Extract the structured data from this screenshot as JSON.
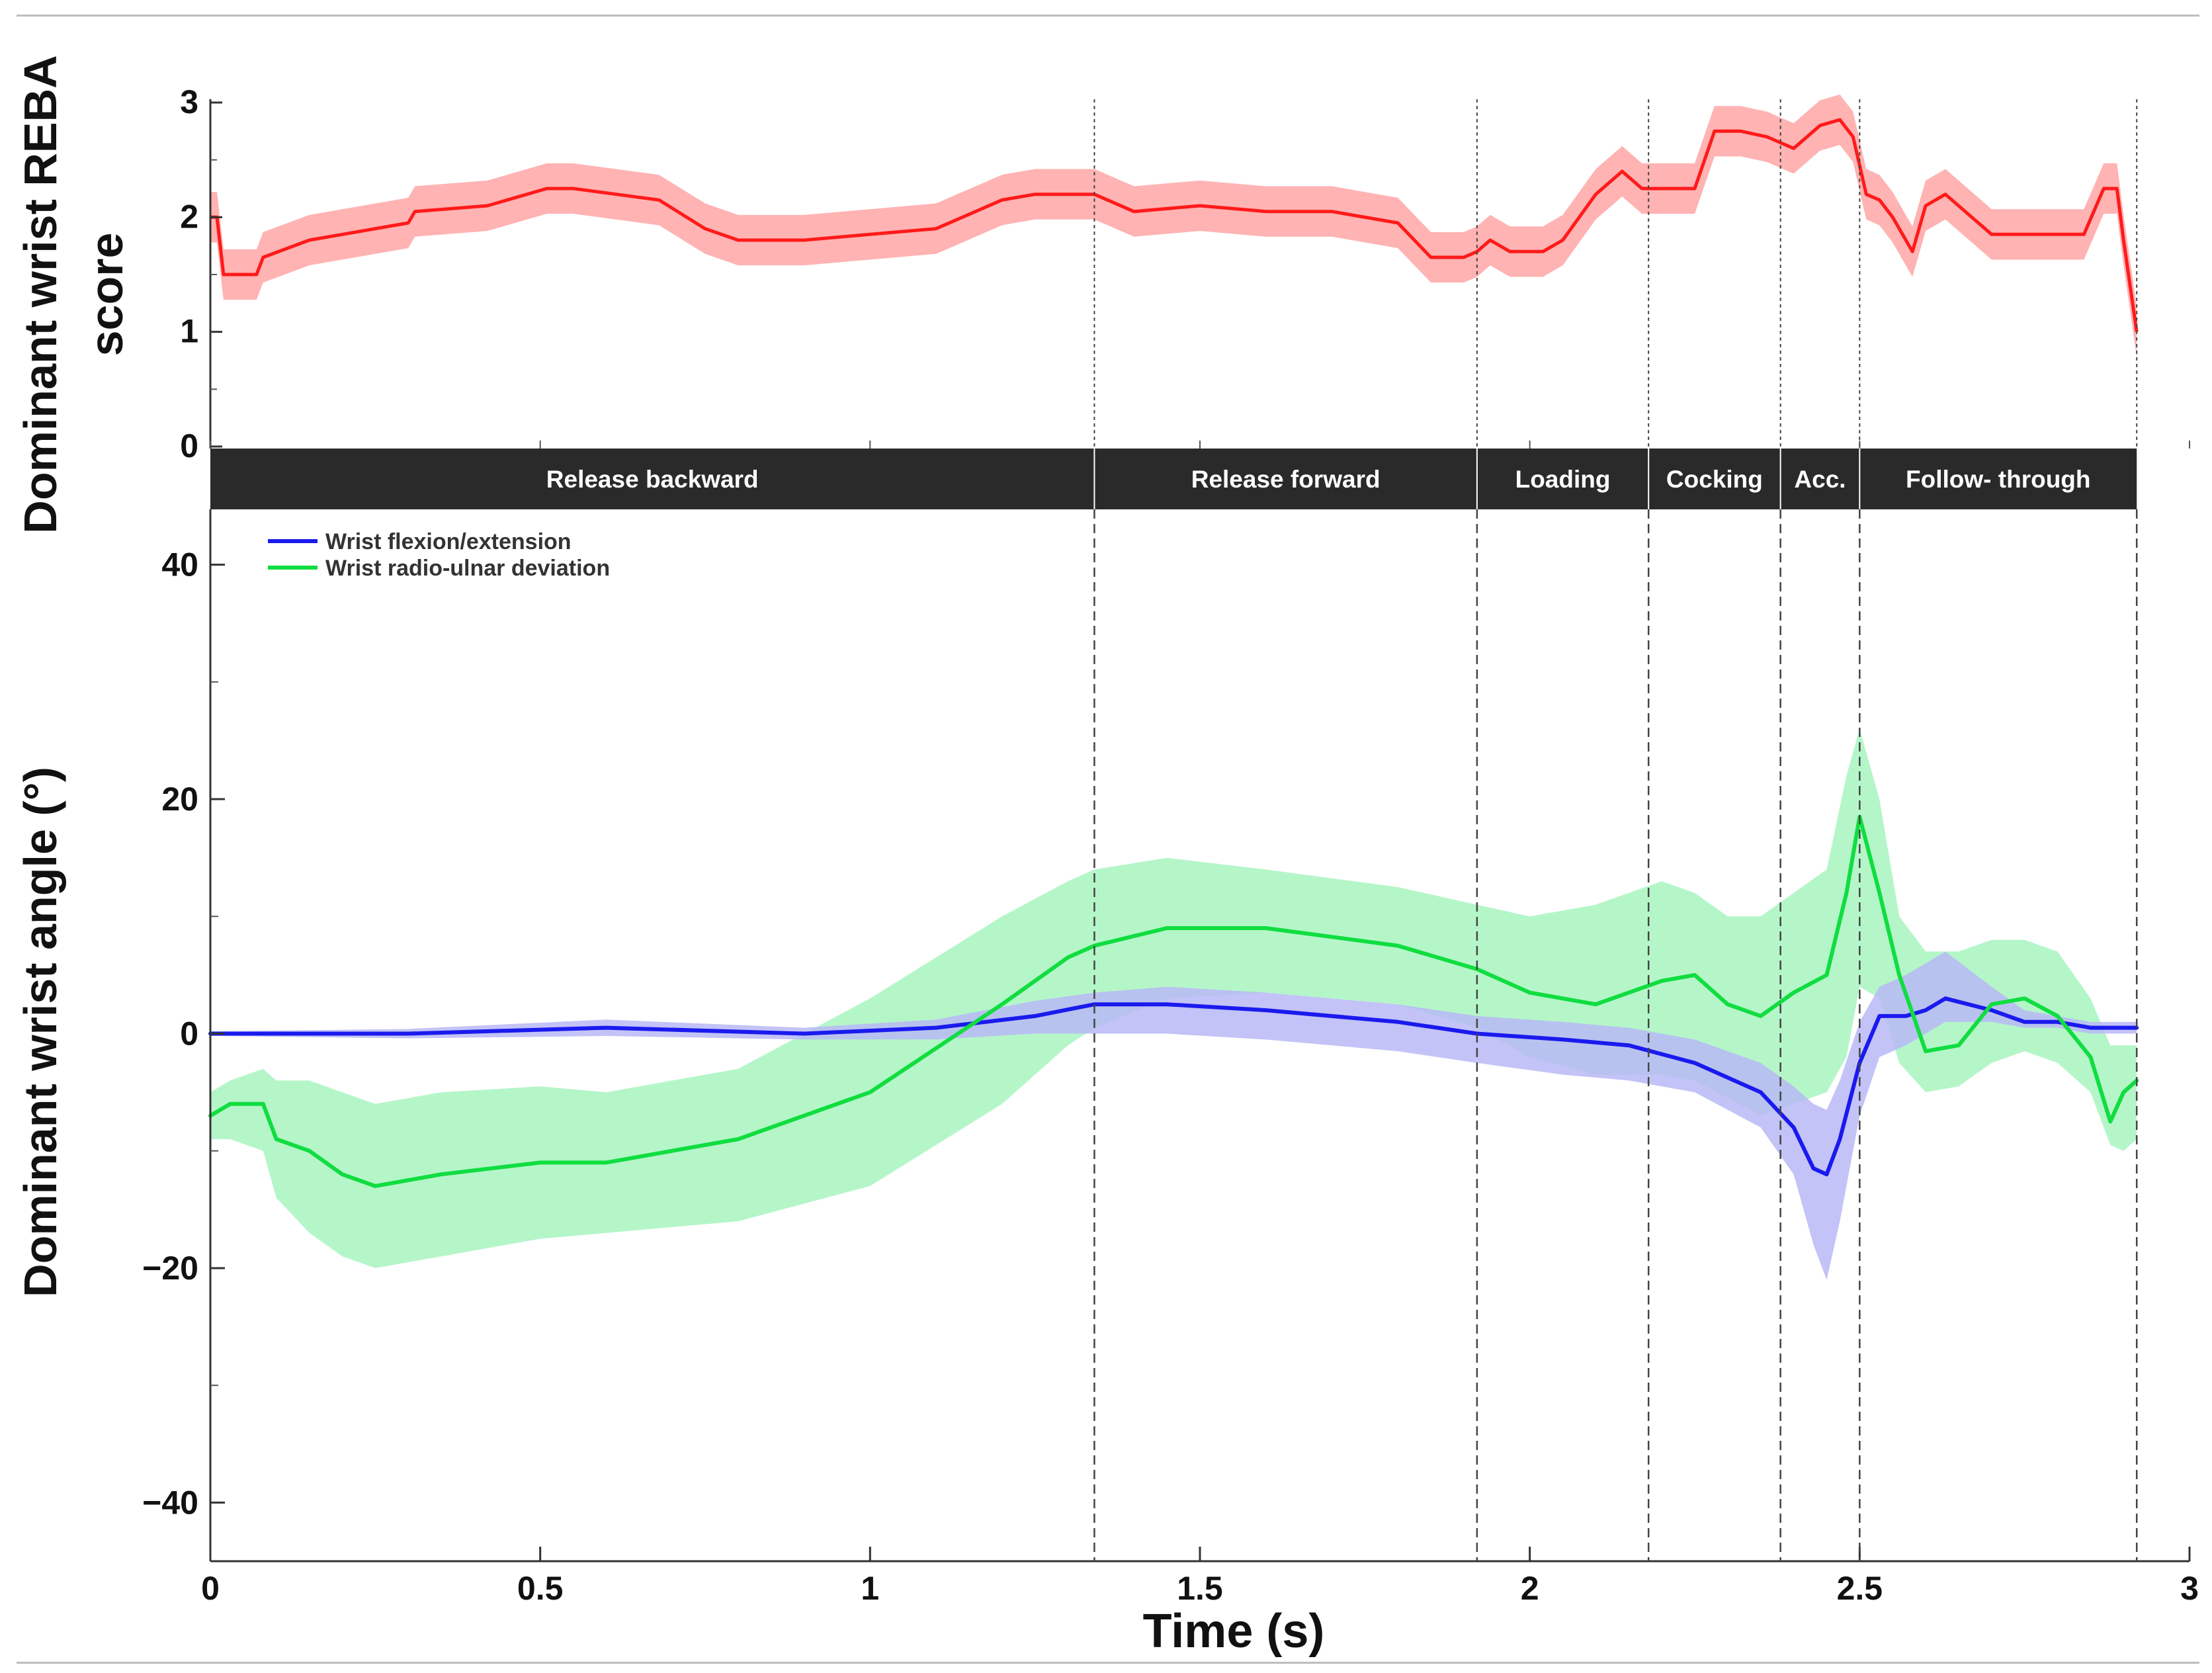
{
  "chart_data": [
    {
      "type": "line",
      "panel": "top",
      "ylabel": "Dominant wrist REBA score",
      "ylabel_lines": [
        "Dominant wrist REBA",
        "score"
      ],
      "xlim": [
        0,
        3
      ],
      "ylim": [
        0,
        3
      ],
      "yticks": [
        0,
        1,
        2,
        3
      ],
      "ytick_labels": [
        "0",
        "1",
        "2",
        "3"
      ],
      "colors": {
        "line": "#ff1a1a",
        "band": "#ffb3b3"
      },
      "series": [
        {
          "name": "REBA score",
          "x": [
            0,
            0.01,
            0.02,
            0.05,
            0.07,
            0.08,
            0.15,
            0.3,
            0.31,
            0.42,
            0.51,
            0.55,
            0.68,
            0.75,
            0.8,
            0.9,
            1.0,
            1.1,
            1.2,
            1.25,
            1.3,
            1.34,
            1.4,
            1.5,
            1.6,
            1.7,
            1.8,
            1.85,
            1.9,
            1.92,
            1.94,
            1.97,
            2.02,
            2.05,
            2.1,
            2.14,
            2.17,
            2.2,
            2.25,
            2.28,
            2.32,
            2.36,
            2.4,
            2.44,
            2.47,
            2.49,
            2.51,
            2.53,
            2.55,
            2.58,
            2.6,
            2.63,
            2.66,
            2.7,
            2.73,
            2.76,
            2.8,
            2.84,
            2.87,
            2.89,
            2.9,
            2.92
          ],
          "values": [
            2.0,
            2.0,
            1.5,
            1.5,
            1.5,
            1.65,
            1.8,
            1.95,
            2.05,
            2.1,
            2.25,
            2.25,
            2.15,
            1.9,
            1.8,
            1.8,
            1.85,
            1.9,
            2.15,
            2.2,
            2.2,
            2.2,
            2.05,
            2.1,
            2.05,
            2.05,
            1.95,
            1.65,
            1.65,
            1.7,
            1.8,
            1.7,
            1.7,
            1.8,
            2.2,
            2.4,
            2.25,
            2.25,
            2.25,
            2.75,
            2.75,
            2.7,
            2.6,
            2.8,
            2.85,
            2.7,
            2.2,
            2.15,
            2.0,
            1.7,
            2.1,
            2.2,
            2.05,
            1.85,
            1.85,
            1.85,
            1.85,
            1.85,
            2.25,
            2.25,
            1.8,
            1.0
          ],
          "band_halfwidth": 0.22
        }
      ]
    },
    {
      "type": "line",
      "panel": "bottom",
      "title": "",
      "xlabel": "Time (s)",
      "ylabel": "Dominant wrist angle (°)",
      "xlim": [
        0,
        3
      ],
      "ylim": [
        -45,
        45
      ],
      "xticks": [
        0,
        0.5,
        1,
        1.5,
        2,
        2.5,
        3
      ],
      "xtick_labels": [
        "0",
        "0.5",
        "1",
        "1.5",
        "2",
        "2.5",
        "3"
      ],
      "yticks": [
        -40,
        -20,
        0,
        20,
        40
      ],
      "ytick_labels": [
        "−40",
        "−20",
        "0",
        "20",
        "40"
      ],
      "legend_position": "top-left",
      "series": [
        {
          "name": "Wrist flexion/extension",
          "color": "#1a1aee",
          "band_color": "#b8b8f6",
          "x": [
            0,
            0.3,
            0.6,
            0.9,
            1.1,
            1.25,
            1.34,
            1.45,
            1.6,
            1.8,
            1.92,
            2.05,
            2.15,
            2.25,
            2.35,
            2.4,
            2.43,
            2.45,
            2.47,
            2.5,
            2.53,
            2.57,
            2.6,
            2.63,
            2.7,
            2.75,
            2.8,
            2.85,
            2.9,
            2.92
          ],
          "values": [
            0,
            0,
            0.5,
            0,
            0.5,
            1.5,
            2.5,
            2.5,
            2.0,
            1.0,
            0,
            -0.5,
            -1.0,
            -2.5,
            -5.0,
            -8.0,
            -11.5,
            -12.0,
            -9.0,
            -2.5,
            1.5,
            1.5,
            2.0,
            3.0,
            2.0,
            1.0,
            1.0,
            0.5,
            0.5,
            0.5
          ],
          "band_low": [
            -0.2,
            -0.4,
            -0.2,
            -0.5,
            -0.5,
            0,
            0,
            0,
            -0.5,
            -1.5,
            -2.5,
            -3.5,
            -4.0,
            -5.0,
            -8.0,
            -12.0,
            -18.0,
            -21.0,
            -16.0,
            -7.0,
            -2.0,
            -1.0,
            0,
            1.0,
            1.0,
            0.5,
            0.5,
            0,
            0,
            0
          ],
          "band_high": [
            0.2,
            0.4,
            1.2,
            0.5,
            1.2,
            2.8,
            3.5,
            4.0,
            3.5,
            2.5,
            1.5,
            1.0,
            0.5,
            -0.5,
            -2.5,
            -4.5,
            -6.0,
            -6.5,
            -4.0,
            1.0,
            4.0,
            5.0,
            6.0,
            7.0,
            4.0,
            2.0,
            1.5,
            1.0,
            1.0,
            1.0
          ]
        },
        {
          "name": "Wrist radio-ulnar deviation",
          "color": "#10dd40",
          "band_color": "#a8f5c0",
          "x": [
            0,
            0.03,
            0.08,
            0.1,
            0.15,
            0.2,
            0.25,
            0.35,
            0.5,
            0.6,
            0.8,
            1.0,
            1.2,
            1.3,
            1.34,
            1.45,
            1.6,
            1.8,
            1.92,
            2.0,
            2.1,
            2.2,
            2.25,
            2.3,
            2.35,
            2.4,
            2.45,
            2.48,
            2.5,
            2.53,
            2.56,
            2.6,
            2.65,
            2.7,
            2.75,
            2.8,
            2.85,
            2.88,
            2.9,
            2.92
          ],
          "values": [
            -7.0,
            -6.0,
            -6.0,
            -9.0,
            -10.0,
            -12.0,
            -13.0,
            -12.0,
            -11.0,
            -11.0,
            -9.0,
            -5.0,
            2.5,
            6.5,
            7.5,
            9.0,
            9.0,
            7.5,
            5.5,
            3.5,
            2.5,
            4.5,
            5.0,
            2.5,
            1.5,
            3.5,
            5.0,
            12.0,
            18.5,
            12.0,
            5.0,
            -1.5,
            -1.0,
            2.5,
            3.0,
            1.5,
            -2.0,
            -7.5,
            -5.0,
            -4.0
          ],
          "band_low": [
            -9.0,
            -9.0,
            -10.0,
            -14.0,
            -17.0,
            -19.0,
            -20.0,
            -19.0,
            -17.5,
            -17.0,
            -16.0,
            -13.0,
            -6.0,
            -1.0,
            0.5,
            3.0,
            3.5,
            2.5,
            0.5,
            -2.0,
            -3.5,
            -3.5,
            -4.0,
            -5.5,
            -7.0,
            -6.0,
            -5.0,
            -2.0,
            4.0,
            3.0,
            -2.5,
            -5.0,
            -4.5,
            -2.5,
            -1.5,
            -2.5,
            -5.0,
            -9.5,
            -10.0,
            -9.0
          ],
          "band_high": [
            -5.0,
            -4.0,
            -3.0,
            -4.0,
            -4.0,
            -5.0,
            -6.0,
            -5.0,
            -4.5,
            -5.0,
            -3.0,
            3.0,
            10.0,
            13.0,
            14.0,
            15.0,
            14.0,
            12.5,
            11.0,
            10.0,
            11.0,
            13.0,
            12.0,
            10.0,
            10.0,
            12.0,
            14.0,
            22.0,
            26.0,
            20.0,
            10.0,
            7.0,
            7.0,
            8.0,
            8.0,
            7.0,
            3.0,
            -1.0,
            -1.0,
            -1.0
          ]
        }
      ]
    }
  ],
  "phases": {
    "boundaries": [
      0,
      1.34,
      1.92,
      2.18,
      2.38,
      2.5,
      2.92
    ],
    "labels": [
      "Release backward",
      "Release forward",
      "Loading",
      "Cocking",
      "Acc.",
      "Follow- through"
    ]
  }
}
